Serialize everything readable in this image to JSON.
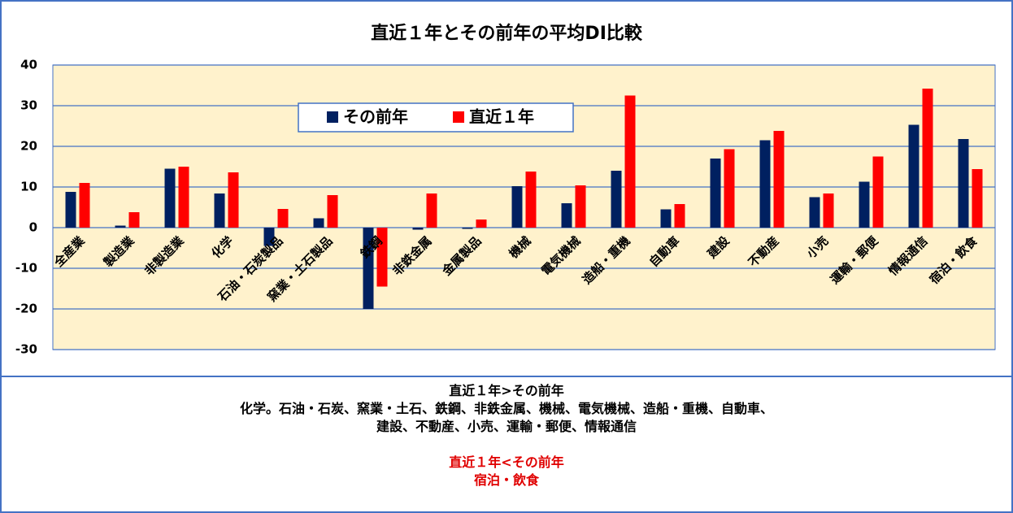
{
  "chart_data": {
    "type": "bar",
    "title": "直近１年とその前年の平均DI比較",
    "categories": [
      "全産業",
      "製造業",
      "非製造業",
      "化学",
      "石油・石炭製品",
      "窯業・土石製品",
      "鉄鋼",
      "非鉄金属",
      "金属製品",
      "機械",
      "電気機械",
      "造船・重機",
      "自動車",
      "建設",
      "不動産",
      "小売",
      "運輸・郵便",
      "情報通信",
      "宿泊・飲食"
    ],
    "series": [
      {
        "name": "その前年",
        "color": "#002060",
        "values": [
          8.8,
          0.5,
          14.5,
          8.4,
          -4.5,
          2.3,
          -20,
          -0.5,
          -0.3,
          10.2,
          6,
          14,
          4.5,
          17,
          21.5,
          7.5,
          11.3,
          25.3,
          21.8
        ]
      },
      {
        "name": "直近１年",
        "color": "#ff0000",
        "values": [
          11,
          3.8,
          15,
          13.6,
          4.6,
          8,
          -14.5,
          8.4,
          2,
          13.8,
          10.4,
          32.5,
          5.8,
          19.3,
          23.8,
          8.4,
          17.5,
          34.2,
          14.4
        ]
      }
    ],
    "ylim": [
      -30,
      40
    ],
    "yticks": [
      -30,
      -20,
      -10,
      0,
      10,
      20,
      30,
      40
    ],
    "grid": true,
    "legend": "top-center"
  },
  "notes": {
    "higher": {
      "heading": "直近１年>その前年",
      "lines": [
        "化学。石油・石炭、窯業・土石、鉄鋼、非鉄金属、機械、電気機械、造船・重機、自動車、",
        "建設、不動産、小売、運輸・郵便、情報通信"
      ]
    },
    "lower": {
      "heading": "直近１年<その前年",
      "lines": [
        "宿泊・飲食"
      ]
    }
  }
}
